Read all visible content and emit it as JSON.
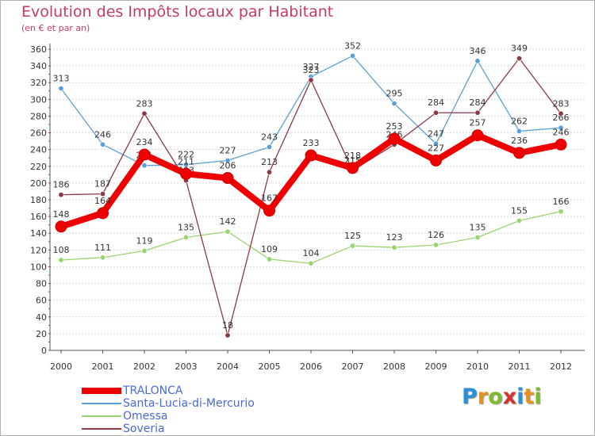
{
  "title": "Evolution des Impôts locaux par Habitant",
  "subtitle": "(en € et par an)",
  "logo": {
    "letters": [
      "P",
      "r",
      "o",
      "x",
      "i",
      "t",
      "i"
    ],
    "colors": [
      "#2b8fd6",
      "#e8901d",
      "#7dbb2f",
      "#d6322e",
      "#2b8fd6",
      "#e8901d",
      "#7dbb2f"
    ]
  },
  "chart_data": {
    "type": "line",
    "title": "Evolution des Impôts locaux par Habitant",
    "subtitle": "(en € et par an)",
    "xlabel": "",
    "ylabel": "",
    "ylim": [
      0,
      360
    ],
    "yticks": [
      "0",
      "20",
      "40",
      "60",
      "80",
      "100",
      "120",
      "140",
      "160",
      "180",
      "200",
      "220",
      "240",
      "260",
      "280",
      "300",
      "320",
      "340",
      "360"
    ],
    "x": [
      "2000",
      "2001",
      "2002",
      "2003",
      "2004",
      "2005",
      "2006",
      "2007",
      "2008",
      "2009",
      "2010",
      "2011",
      "2012"
    ],
    "grid": "horizontal",
    "legend_position": "bottom-left",
    "series": [
      {
        "name": "Santa-Lucia-di-Mercurio",
        "color": "#5b9fd6",
        "values": [
          313,
          246,
          221,
          222,
          227,
          243,
          327,
          352,
          295,
          247,
          346,
          262,
          266
        ],
        "labels": [
          "313",
          "246",
          "221",
          "222",
          "227",
          "243",
          "327",
          "352",
          "295",
          "247",
          "346",
          "262",
          "266"
        ]
      },
      {
        "name": "Omessa",
        "color": "#9ad472",
        "values": [
          108,
          111,
          119,
          135,
          142,
          109,
          104,
          125,
          123,
          126,
          135,
          155,
          166
        ],
        "labels": [
          "108",
          "111",
          "119",
          "135",
          "142",
          "109",
          "104",
          "125",
          "123",
          "126",
          "135",
          "155",
          "166"
        ]
      },
      {
        "name": "Soveria",
        "color": "#8b3a44",
        "values": [
          186,
          187,
          283,
          203,
          18,
          213,
          323,
          215,
          246,
          284,
          284,
          349,
          283
        ],
        "labels": [
          "186",
          "187",
          "283",
          "203",
          "18",
          "213",
          "323",
          "215",
          "246",
          "284",
          "284",
          "349",
          "283"
        ]
      },
      {
        "name": "TRALONCA",
        "color": "#ee0000",
        "values": [
          148,
          164,
          234,
          211,
          206,
          167,
          233,
          218,
          253,
          227,
          257,
          236,
          246
        ],
        "labels": [
          "148",
          "164",
          "234",
          "211",
          "206",
          "167",
          "233",
          "218",
          "253",
          "227",
          "257",
          "236",
          "246"
        ]
      }
    ],
    "legend_order": [
      "TRALONCA",
      "Santa-Lucia-di-Mercurio",
      "Omessa",
      "Soveria"
    ]
  }
}
